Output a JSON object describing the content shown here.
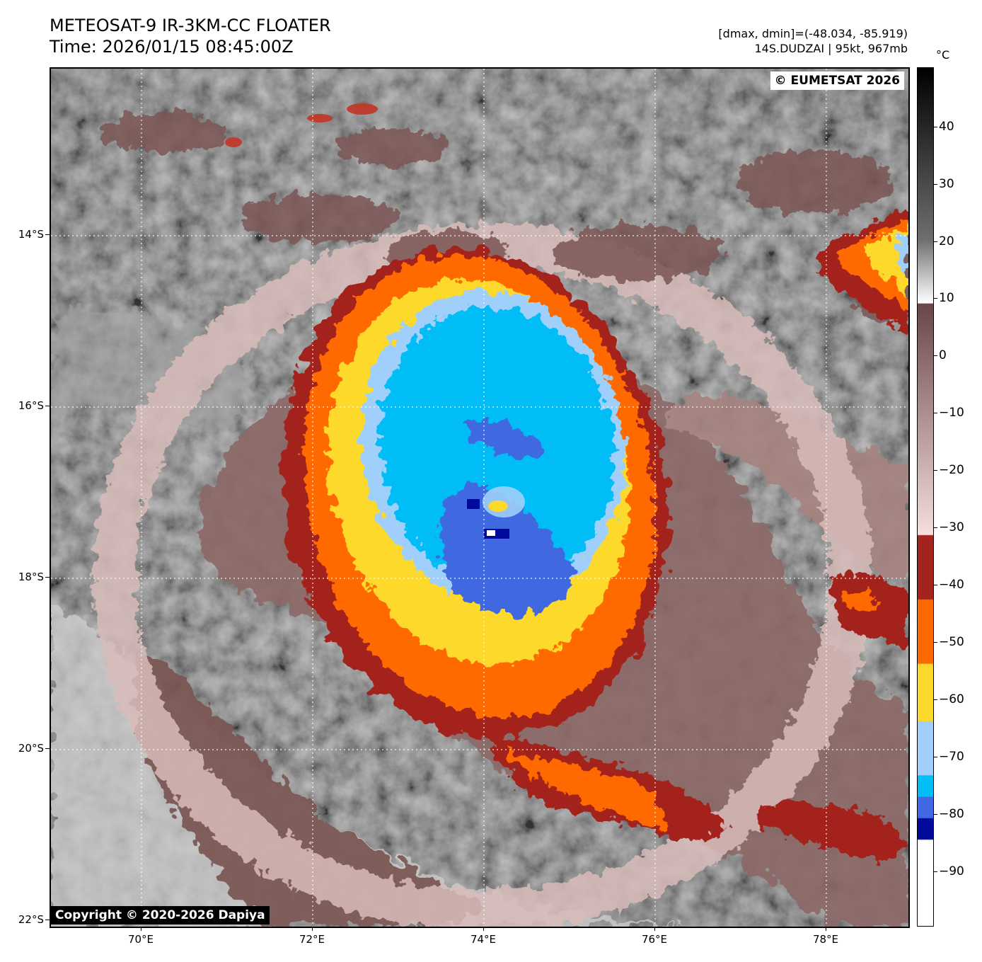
{
  "header": {
    "title_line1": "METEOSAT-9 IR-3KM-CC FLOATER",
    "title_line2": "Time: 2026/01/15 08:45:00Z",
    "info_line1": "[dmax, dmin]=(-48.034, -85.919)",
    "info_line2": "14S.DUDZAI | 95kt, 967mb"
  },
  "map": {
    "eumetsat_badge": "© EUMETSAT 2026",
    "copyright_badge": "Copyright © 2020-2026 Dapiya",
    "lat_labels": [
      "14°S",
      "16°S",
      "18°S",
      "20°S",
      "22°S"
    ],
    "lon_labels": [
      "70°E",
      "72°E",
      "74°E",
      "76°E",
      "78°E"
    ]
  },
  "colorbar": {
    "unit": "°C",
    "ticks": [
      "40",
      "30",
      "20",
      "10",
      "0",
      "−10",
      "−20",
      "−30",
      "−40",
      "−50",
      "−60",
      "−70",
      "−80",
      "−90"
    ],
    "stops": [
      {
        "color": "#000000"
      },
      {
        "color": "#6e6e6e"
      },
      {
        "color": "#ffffff"
      },
      {
        "color": "#6a4646"
      },
      {
        "color": "#f5dede"
      },
      {
        "color": "#a3241e"
      },
      {
        "color": "#ff6a00"
      },
      {
        "color": "#fcd92b"
      },
      {
        "color": "#9fcffa"
      },
      {
        "color": "#00bdf6"
      },
      {
        "color": "#4169e1"
      },
      {
        "color": "#000a9b"
      }
    ]
  }
}
